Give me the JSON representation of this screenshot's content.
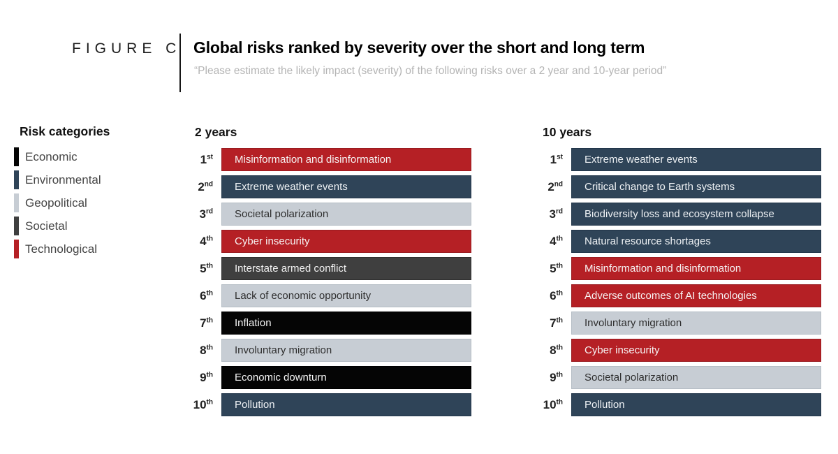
{
  "header": {
    "figure_label": "FIGURE C",
    "title": "Global risks ranked by severity over the short and long term",
    "subtitle": "“Please estimate the likely impact (severity) of the following risks over a 2 year and 10-year period”"
  },
  "palette": {
    "black": {
      "fill": "#050505",
      "border": "#000000",
      "text": "#f5f5f5"
    },
    "dark_blue": {
      "fill": "#2f4458",
      "border": "#22364a",
      "text": "#eef1f4"
    },
    "light_gray": {
      "fill": "#c7cdd4",
      "border": "#b5bdc5",
      "text": "#2e2e2e"
    },
    "dark_gray": {
      "fill": "#3f3f3f",
      "border": "#2e2e2e",
      "text": "#f2f2f2"
    },
    "red": {
      "fill": "#b52025",
      "border": "#9a1b20",
      "text": "#f7f3f3"
    }
  },
  "legend": {
    "title": "Risk categories",
    "items": [
      {
        "label": "Economic",
        "color": "black"
      },
      {
        "label": "Environmental",
        "color": "dark_blue"
      },
      {
        "label": "Geopolitical",
        "color": "light_gray"
      },
      {
        "label": "Societal",
        "color": "dark_gray"
      },
      {
        "label": "Technological",
        "color": "red"
      }
    ]
  },
  "chart_data": {
    "type": "table",
    "title": "Global risks ranked by severity over the short and long term",
    "subtitle": "“Please estimate the likely impact (severity) of the following risks over a 2 year and 10-year period”",
    "legend_title": "Risk categories",
    "columns": [
      {
        "label": "2 years",
        "ranking": [
          {
            "rank": "1",
            "suffix": "st",
            "risk": "Misinformation and disinformation",
            "color": "red"
          },
          {
            "rank": "2",
            "suffix": "nd",
            "risk": "Extreme weather events",
            "color": "dark_blue"
          },
          {
            "rank": "3",
            "suffix": "rd",
            "risk": "Societal polarization",
            "color": "light_gray"
          },
          {
            "rank": "4",
            "suffix": "th",
            "risk": "Cyber insecurity",
            "color": "red"
          },
          {
            "rank": "5",
            "suffix": "th",
            "risk": "Interstate armed conflict",
            "color": "dark_gray"
          },
          {
            "rank": "6",
            "suffix": "th",
            "risk": "Lack of economic opportunity",
            "color": "light_gray"
          },
          {
            "rank": "7",
            "suffix": "th",
            "risk": "Inflation",
            "color": "black"
          },
          {
            "rank": "8",
            "suffix": "th",
            "risk": "Involuntary migration",
            "color": "light_gray"
          },
          {
            "rank": "9",
            "suffix": "th",
            "risk": "Economic downturn",
            "color": "black"
          },
          {
            "rank": "10",
            "suffix": "th",
            "risk": "Pollution",
            "color": "dark_blue"
          }
        ]
      },
      {
        "label": "10 years",
        "ranking": [
          {
            "rank": "1",
            "suffix": "st",
            "risk": "Extreme weather events",
            "color": "dark_blue"
          },
          {
            "rank": "2",
            "suffix": "nd",
            "risk": "Critical change to Earth systems",
            "color": "dark_blue"
          },
          {
            "rank": "3",
            "suffix": "rd",
            "risk": "Biodiversity loss and ecosystem collapse",
            "color": "dark_blue"
          },
          {
            "rank": "4",
            "suffix": "th",
            "risk": "Natural resource shortages",
            "color": "dark_blue"
          },
          {
            "rank": "5",
            "suffix": "th",
            "risk": "Misinformation and disinformation",
            "color": "red"
          },
          {
            "rank": "6",
            "suffix": "th",
            "risk": "Adverse outcomes of AI technologies",
            "color": "red"
          },
          {
            "rank": "7",
            "suffix": "th",
            "risk": "Involuntary migration",
            "color": "light_gray"
          },
          {
            "rank": "8",
            "suffix": "th",
            "risk": "Cyber insecurity",
            "color": "red"
          },
          {
            "rank": "9",
            "suffix": "th",
            "risk": "Societal polarization",
            "color": "light_gray"
          },
          {
            "rank": "10",
            "suffix": "th",
            "risk": "Pollution",
            "color": "dark_blue"
          }
        ]
      }
    ]
  }
}
